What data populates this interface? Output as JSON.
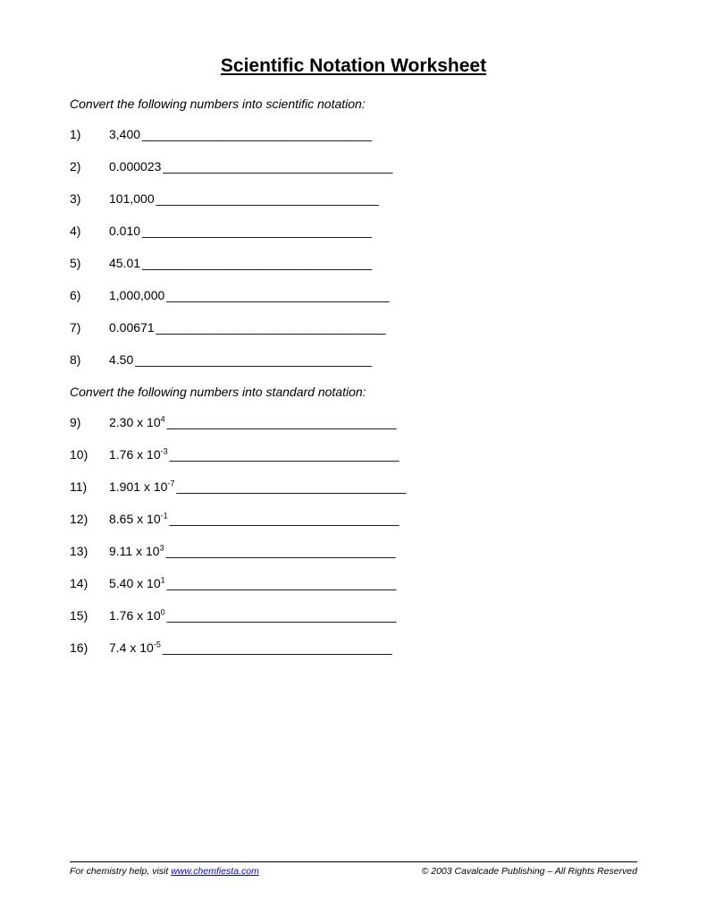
{
  "title": "Scientific Notation Worksheet",
  "section1": {
    "instruction": "Convert the following numbers into scientific notation:",
    "items": [
      {
        "num": "1)",
        "value": "3,400",
        "blank": "_________________________________"
      },
      {
        "num": "2)",
        "value": "0.000023",
        "blank": "_________________________________"
      },
      {
        "num": "3)",
        "value": "101,000",
        "blank": "________________________________"
      },
      {
        "num": "4)",
        "value": "0.010",
        "blank": "_________________________________"
      },
      {
        "num": "5)",
        "value": "45.01",
        "blank": "_________________________________"
      },
      {
        "num": "6)",
        "value": "1,000,000",
        "blank": "________________________________"
      },
      {
        "num": "7)",
        "value": "0.00671",
        "blank": "_________________________________"
      },
      {
        "num": "8)",
        "value": "4.50",
        "blank": "__________________________________"
      }
    ]
  },
  "section2": {
    "instruction": "Convert the following numbers into standard notation:",
    "items": [
      {
        "num": "9)",
        "coef": "2.30 x 10",
        "exp": "4",
        "blank": "_________________________________"
      },
      {
        "num": "10)",
        "coef": "1.76 x 10",
        "exp": "-3",
        "blank": "_________________________________"
      },
      {
        "num": "11)",
        "coef": "1.901 x 10",
        "exp": "-7",
        "blank": "_________________________________"
      },
      {
        "num": "12)",
        "coef": "8.65 x 10",
        "exp": "-1",
        "blank": "_________________________________"
      },
      {
        "num": "13)",
        "coef": "9.11 x 10",
        "exp": "3",
        "blank": "_________________________________"
      },
      {
        "num": "14)",
        "coef": "5.40 x 10",
        "exp": "1",
        "blank": "_________________________________"
      },
      {
        "num": "15)",
        "coef": "1.76 x 10",
        "exp": "0",
        "blank": "_________________________________"
      },
      {
        "num": "16)",
        "coef": "7.4 x 10",
        "exp": "-5",
        "blank": "_________________________________"
      }
    ]
  },
  "footer": {
    "left_prefix": "For chemistry help, visit ",
    "left_link": "www.chemfiesta.com",
    "right": "© 2003 Cavalcade Publishing – All Rights Reserved"
  }
}
